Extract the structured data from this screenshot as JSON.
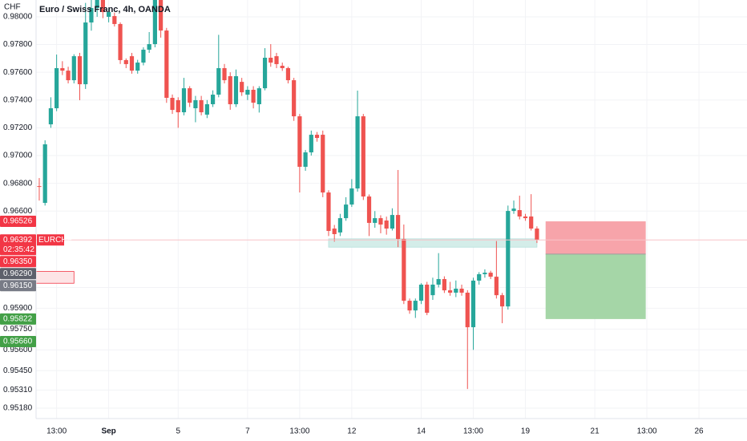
{
  "chart_data": {
    "type": "candlestick",
    "title": "Euro / Swiss Franc, 4h, OANDA",
    "unit": "CHF",
    "up_color": "#26a69a",
    "down_color": "#ef5350",
    "grid": true,
    "ylim": [
      0.95105,
      0.98121
    ],
    "xlim": [
      -0.55,
      122.3
    ],
    "yticks": [
      {
        "value": 0.98,
        "label": "0.98000"
      },
      {
        "value": 0.978,
        "label": "0.97800"
      },
      {
        "value": 0.976,
        "label": "0.97600"
      },
      {
        "value": 0.974,
        "label": "0.97400"
      },
      {
        "value": 0.972,
        "label": "0.97200"
      },
      {
        "value": 0.97,
        "label": "0.97000"
      },
      {
        "value": 0.968,
        "label": "0.96800"
      },
      {
        "value": 0.966,
        "label": "0.96600"
      },
      {
        "value": 0.9605,
        "label": "0.96050"
      },
      {
        "value": 0.959,
        "label": "0.95900"
      },
      {
        "value": 0.9575,
        "label": "0.95750"
      },
      {
        "value": 0.956,
        "label": "0.95600"
      },
      {
        "value": 0.9545,
        "label": "0.95450"
      },
      {
        "value": 0.9531,
        "label": "0.95310"
      },
      {
        "value": 0.9518,
        "label": "0.95180"
      }
    ],
    "xticks": [
      {
        "value": 3,
        "label": "13:00"
      },
      {
        "value": 12,
        "label": "Sep"
      },
      {
        "value": 24,
        "label": "5"
      },
      {
        "value": 36,
        "label": "7"
      },
      {
        "value": 45,
        "label": "13:00"
      },
      {
        "value": 54,
        "label": "12"
      },
      {
        "value": 66,
        "label": "14"
      },
      {
        "value": 75,
        "label": "13:00"
      },
      {
        "value": 84,
        "label": "19"
      },
      {
        "value": 96,
        "label": "21"
      },
      {
        "value": 105,
        "label": "13:00"
      },
      {
        "value": 114,
        "label": "26"
      }
    ],
    "ohlc": [
      [
        0.9678,
        0.96838,
        0.96676,
        0.96775
      ],
      [
        0.96659,
        0.9711,
        0.9664,
        0.97081
      ],
      [
        0.97225,
        0.9742,
        0.972,
        0.97341
      ],
      [
        0.97341,
        0.97728,
        0.9732,
        0.9763
      ],
      [
        0.9763,
        0.9768,
        0.9758,
        0.97612
      ],
      [
        0.97612,
        0.9764,
        0.9752,
        0.97543
      ],
      [
        0.97543,
        0.9773,
        0.9752,
        0.97716
      ],
      [
        0.97716,
        0.9774,
        0.97399,
        0.97514
      ],
      [
        0.97514,
        0.981,
        0.9748,
        0.97959
      ],
      [
        0.97959,
        0.98121,
        0.979,
        0.98063
      ],
      [
        0.98063,
        0.98121,
        0.98,
        0.98121
      ],
      [
        0.98121,
        0.98121,
        0.9799,
        0.98034
      ],
      [
        0.98,
        0.9806,
        0.9796,
        0.98034
      ],
      [
        0.98005,
        0.9803,
        0.9793,
        0.97948
      ],
      [
        0.97948,
        0.9796,
        0.9766,
        0.97688
      ],
      [
        0.97688,
        0.977,
        0.9763,
        0.97659
      ],
      [
        0.97716,
        0.9774,
        0.9759,
        0.97612
      ],
      [
        0.97612,
        0.9769,
        0.9759,
        0.9767
      ],
      [
        0.9767,
        0.9778,
        0.9765,
        0.97763
      ],
      [
        0.97763,
        0.9789,
        0.9774,
        0.97803
      ],
      [
        0.97803,
        0.98121,
        0.9778,
        0.98121
      ],
      [
        0.98121,
        0.98121,
        0.9785,
        0.97901
      ],
      [
        0.97901,
        0.9792,
        0.9738,
        0.97416
      ],
      [
        0.97416,
        0.9744,
        0.973,
        0.97329
      ],
      [
        0.97399,
        0.9742,
        0.972,
        0.97312
      ],
      [
        0.97312,
        0.9756,
        0.9729,
        0.97485
      ],
      [
        0.97485,
        0.975,
        0.9735,
        0.97381
      ],
      [
        0.97341,
        0.9743,
        0.9724,
        0.97399
      ],
      [
        0.97399,
        0.9743,
        0.9729,
        0.97312
      ],
      [
        0.97295,
        0.974,
        0.9727,
        0.9737
      ],
      [
        0.9737,
        0.9747,
        0.9735,
        0.97439
      ],
      [
        0.97439,
        0.9787,
        0.9742,
        0.9763
      ],
      [
        0.9763,
        0.9766,
        0.9752,
        0.97543
      ],
      [
        0.97572,
        0.976,
        0.9733,
        0.9737
      ],
      [
        0.9737,
        0.9762,
        0.9735,
        0.97572
      ],
      [
        0.97531,
        0.9756,
        0.9743,
        0.97456
      ],
      [
        0.97439,
        0.975,
        0.974,
        0.97474
      ],
      [
        0.97474,
        0.975,
        0.9734,
        0.97381
      ],
      [
        0.9737,
        0.975,
        0.9731,
        0.97485
      ],
      [
        0.97485,
        0.97774,
        0.9747,
        0.97705
      ],
      [
        0.97705,
        0.97803,
        0.9764,
        0.9767
      ],
      [
        0.97716,
        0.9774,
        0.9763,
        0.97659
      ],
      [
        0.97647,
        0.9767,
        0.9761,
        0.9763
      ],
      [
        0.9763,
        0.9764,
        0.9752,
        0.97543
      ],
      [
        0.97543,
        0.9756,
        0.9725,
        0.97283
      ],
      [
        0.97283,
        0.973,
        0.96734,
        0.96919
      ],
      [
        0.96919,
        0.9704,
        0.9689,
        0.97023
      ],
      [
        0.97023,
        0.9718,
        0.97,
        0.9715
      ],
      [
        0.9715,
        0.9717,
        0.971,
        0.97127
      ],
      [
        0.9715,
        0.9718,
        0.967,
        0.96734
      ],
      [
        0.96734,
        0.9675,
        0.9642,
        0.96457
      ],
      [
        0.96474,
        0.965,
        0.9638,
        0.96434
      ],
      [
        0.96446,
        0.9658,
        0.9642,
        0.96549
      ],
      [
        0.96549,
        0.967,
        0.9653,
        0.96647
      ],
      [
        0.96647,
        0.9683,
        0.9663,
        0.96763
      ],
      [
        0.96763,
        0.97468,
        0.9674,
        0.97283
      ],
      [
        0.97283,
        0.973,
        0.9668,
        0.96705
      ],
      [
        0.96705,
        0.9672,
        0.9642,
        0.96515
      ],
      [
        0.96515,
        0.966,
        0.9648,
        0.96549
      ],
      [
        0.96549,
        0.9657,
        0.9644,
        0.96503
      ],
      [
        0.96532,
        0.9656,
        0.9643,
        0.96474
      ],
      [
        0.96474,
        0.9662,
        0.9646,
        0.96572
      ],
      [
        0.96572,
        0.96896,
        0.9634,
        0.96399
      ],
      [
        0.96399,
        0.96503,
        0.9593,
        0.95954
      ],
      [
        0.95954,
        0.9597,
        0.9586,
        0.95884
      ],
      [
        0.95884,
        0.9597,
        0.9583,
        0.95954
      ],
      [
        0.95954,
        0.9608,
        0.9593,
        0.9607
      ],
      [
        0.9607,
        0.9609,
        0.9585,
        0.95867
      ],
      [
        0.95994,
        0.9612,
        0.9596,
        0.9607
      ],
      [
        0.9607,
        0.96297,
        0.9605,
        0.9611
      ],
      [
        0.9611,
        0.9613,
        0.9601,
        0.96029
      ],
      [
        0.96029,
        0.9609,
        0.9599,
        0.96012
      ],
      [
        0.96012,
        0.961,
        0.9598,
        0.96041
      ],
      [
        0.96041,
        0.9607,
        0.9599,
        0.96012
      ],
      [
        0.96012,
        0.9603,
        0.95318,
        0.95763
      ],
      [
        0.95763,
        0.9612,
        0.956,
        0.96099
      ],
      [
        0.96099,
        0.9616,
        0.9607,
        0.96145
      ],
      [
        0.96145,
        0.9618,
        0.9612,
        0.96156
      ],
      [
        0.96156,
        0.9617,
        0.9611,
        0.96127
      ],
      [
        0.96127,
        0.96384,
        0.9597,
        0.95994
      ],
      [
        0.95994,
        0.9601,
        0.95792,
        0.95913
      ],
      [
        0.95913,
        0.9664,
        0.9589,
        0.96601
      ],
      [
        0.96601,
        0.96676,
        0.9658,
        0.96618
      ],
      [
        0.96607,
        0.96711,
        0.9654,
        0.96561
      ],
      [
        0.96561,
        0.9658,
        0.9653,
        0.96549
      ],
      [
        0.96561,
        0.96722,
        0.9646,
        0.96474
      ],
      [
        0.96474,
        0.9649,
        0.9637,
        0.96392
      ]
    ],
    "zones": [
      {
        "low": 0.9634,
        "high": 0.964,
        "x_from": 50,
        "x_to": 86,
        "color": "#d4ede9",
        "border": "#b2dfdb"
      },
      {
        "low": 0.9608,
        "high": 0.96165,
        "x_from": -0.55,
        "x_to": 6,
        "color": "#fde4e6",
        "border": "#f23645"
      }
    ],
    "position": {
      "stop": 0.96526,
      "entry": 0.9629,
      "target": 0.95822,
      "x_from": 87.5,
      "x_to": 104.8,
      "loss_color": "#f7a4aa",
      "profit_color": "#a5d6a7",
      "entry_color": "#9e9e9e"
    },
    "last_price": {
      "value": 0.96392,
      "label": "0.96392",
      "symbol": "EURCHF",
      "countdown": "02:35:42",
      "color": "#f23645",
      "line_color": "#f8c4c7"
    },
    "price_labels": [
      {
        "value": 0.96526,
        "label": "0.96526",
        "color": "#f23645"
      },
      {
        "value": 0.9635,
        "label": "0.96350",
        "color": "#f23645"
      },
      {
        "value": 0.9629,
        "label": "0.96290",
        "color": "#5d606b"
      },
      {
        "value": 0.9615,
        "label": "0.96150",
        "color": "#787b86"
      },
      {
        "value": 0.95822,
        "label": "0.95822",
        "color": "#43a047"
      },
      {
        "value": 0.9566,
        "label": "0.95660",
        "color": "#43a047"
      }
    ]
  }
}
